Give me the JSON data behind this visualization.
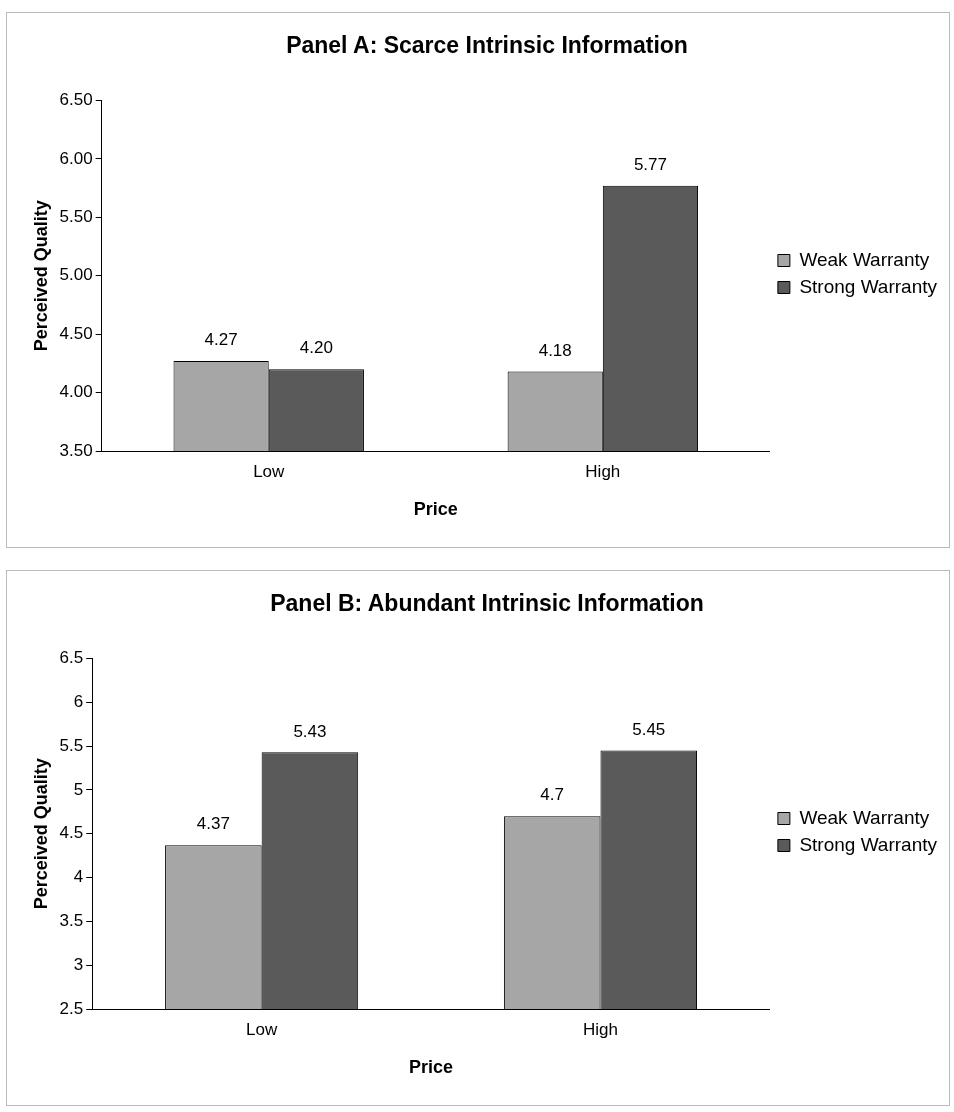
{
  "chart_data": [
    {
      "type": "bar",
      "title": "Panel A: Scarce Intrinsic Information",
      "xlabel": "Price",
      "ylabel": "Perceived Quality",
      "categories": [
        "Low",
        "High"
      ],
      "series": [
        {
          "name": "Weak Warranty",
          "color": "#a6a6a6",
          "values": [
            4.27,
            4.18
          ],
          "value_labels": [
            "4.27",
            "4.18"
          ]
        },
        {
          "name": "Strong Warranty",
          "color": "#5a5a5a",
          "values": [
            4.2,
            5.77
          ],
          "value_labels": [
            "4.20",
            "5.77"
          ]
        }
      ],
      "ylim": [
        3.5,
        6.5
      ],
      "yticks": [
        {
          "value": 3.5,
          "label": "3.50"
        },
        {
          "value": 4,
          "label": "4.00"
        },
        {
          "value": 4.5,
          "label": "4.50"
        },
        {
          "value": 5,
          "label": "5.00"
        },
        {
          "value": 5.5,
          "label": "5.50"
        },
        {
          "value": 6,
          "label": "6.00"
        },
        {
          "value": 6.5,
          "label": "6.50"
        }
      ],
      "legend": "right",
      "grid": false
    },
    {
      "type": "bar",
      "title": "Panel B: Abundant Intrinsic Information",
      "xlabel": "Price",
      "ylabel": "Perceived Quality",
      "categories": [
        "Low",
        "High"
      ],
      "series": [
        {
          "name": "Weak Warranty",
          "color": "#a6a6a6",
          "values": [
            4.37,
            4.7
          ]
        },
        {
          "name": "Strong Warranty",
          "color": "#5a5a5a",
          "values": [
            5.43,
            5.45
          ]
        }
      ],
      "ylim": [
        2.5,
        6.5
      ],
      "yticks": [
        2.5,
        3,
        3.5,
        4,
        4.5,
        5,
        5.5,
        6,
        6.5
      ],
      "data_labels": true,
      "legend": "right",
      "grid": false
    }
  ]
}
